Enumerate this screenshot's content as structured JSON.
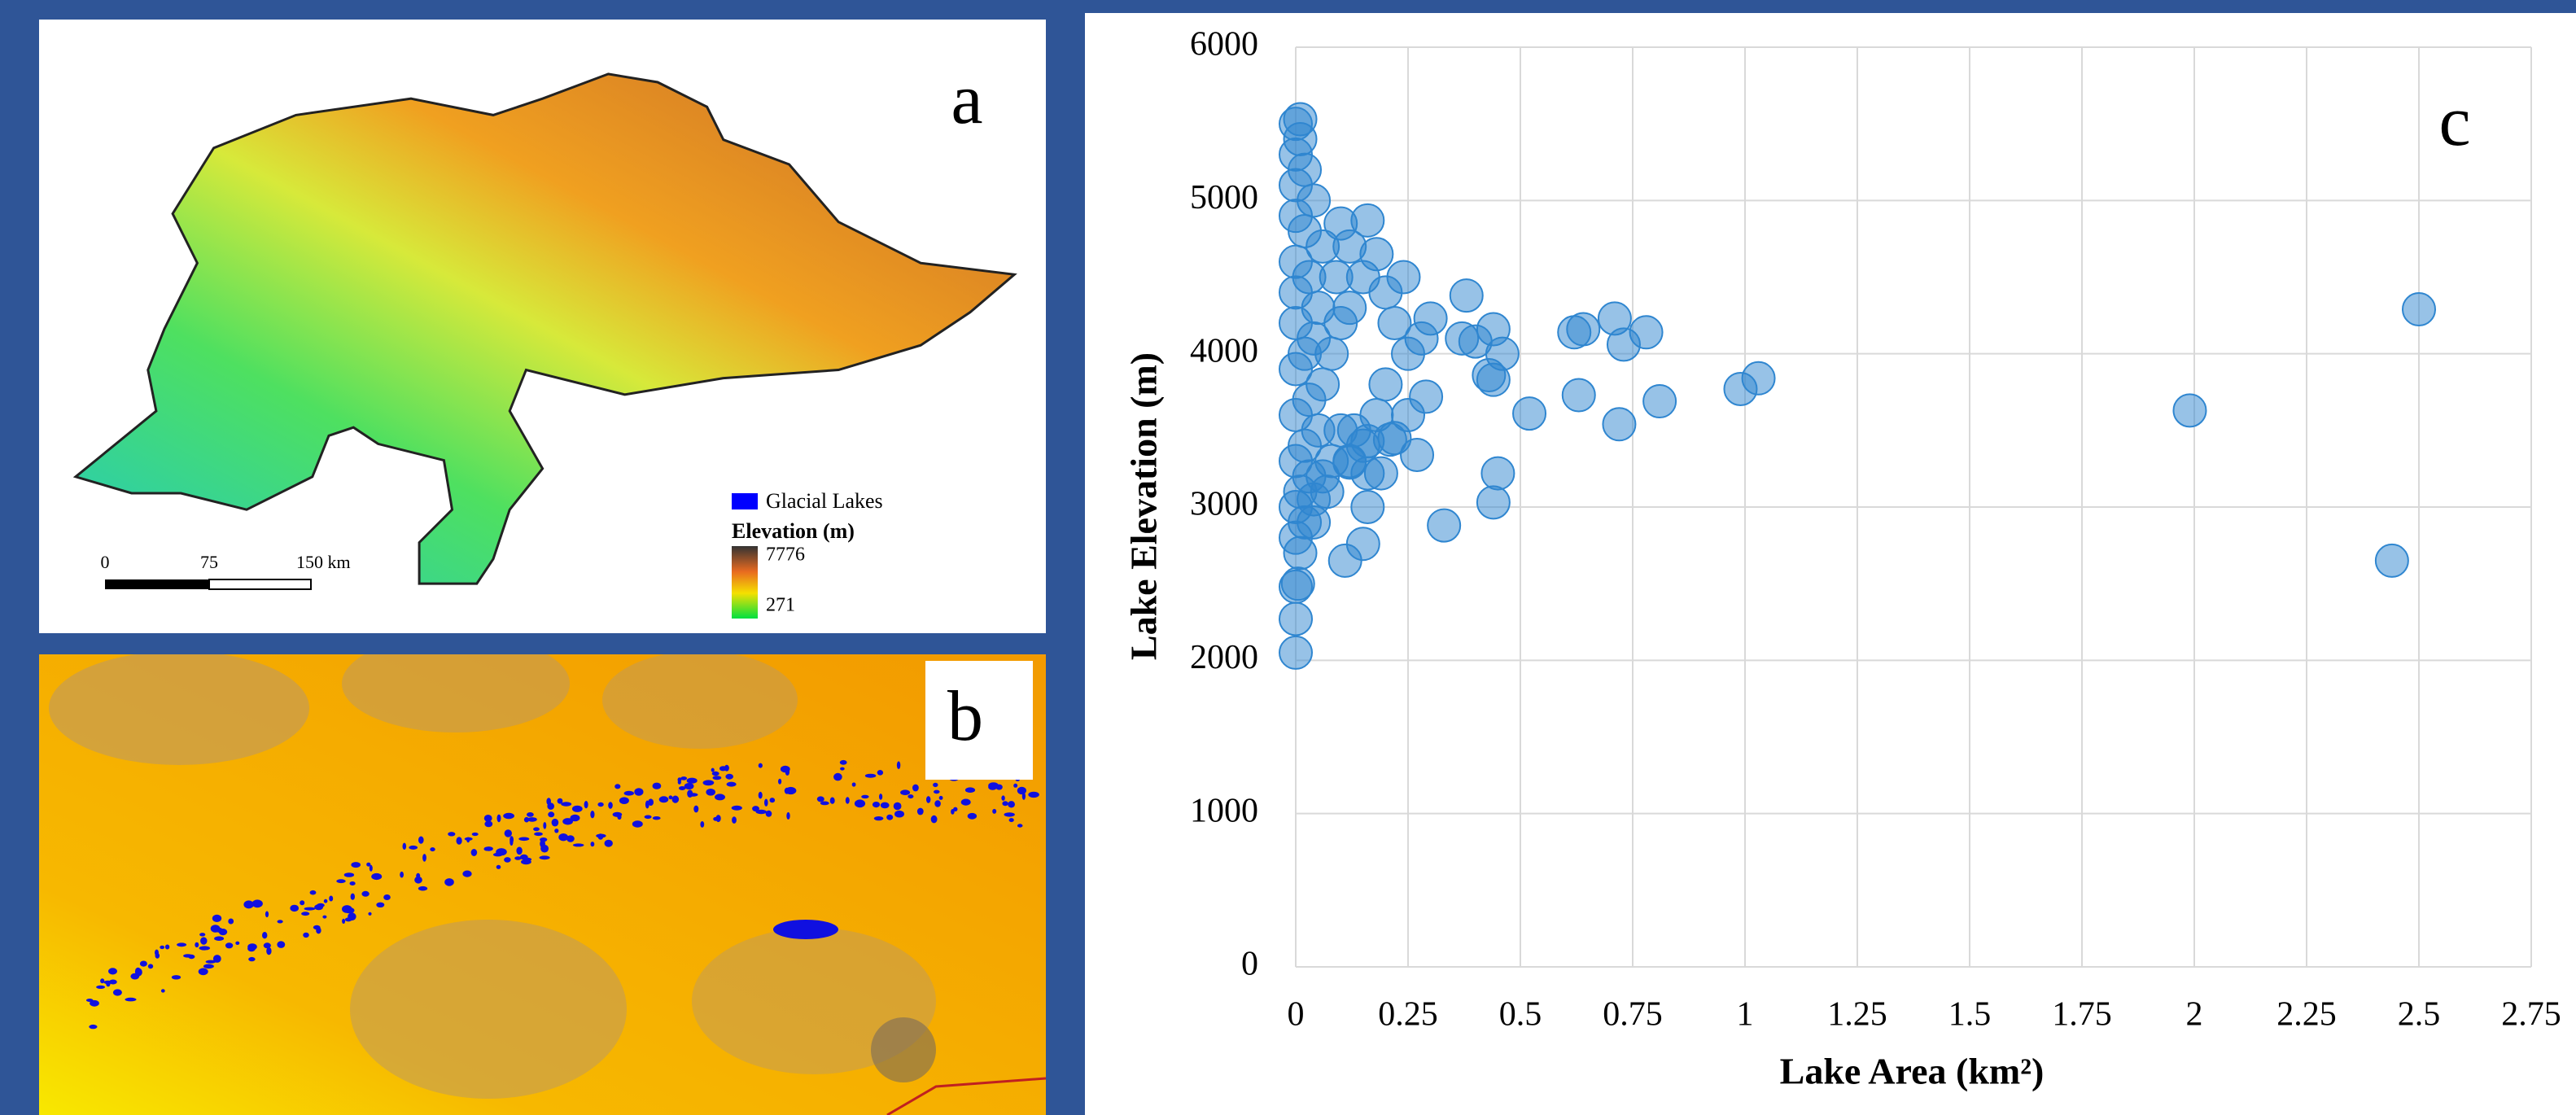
{
  "panels": {
    "a": {
      "label": "a",
      "legend_lakes": "Glacial Lakes",
      "legend_title": "Elevation (m)",
      "legend_max": "7776",
      "legend_min": "271",
      "scale": [
        "0",
        "75",
        "150 km"
      ]
    },
    "b": {
      "label": "b"
    }
  },
  "chart_data": {
    "type": "scatter",
    "annotation": "c",
    "xlabel": "Lake Area (km²)",
    "ylabel": "Lake Elevation (m)",
    "color": "#2f86d0",
    "grid": true,
    "xlim": [
      0,
      2.75
    ],
    "ylim": [
      0,
      6000
    ],
    "xticks": [
      0,
      0.25,
      0.5,
      0.75,
      1,
      1.25,
      1.5,
      1.75,
      2,
      2.25,
      2.5,
      2.75
    ],
    "yticks": [
      0,
      1000,
      2000,
      3000,
      4000,
      5000,
      6000
    ],
    "x": [
      0,
      0,
      0,
      0.005,
      0.01,
      0,
      0.02,
      0.04,
      0,
      0.01,
      0.03,
      0,
      0.02,
      0.05,
      0,
      0.03,
      0.06,
      0,
      0.02,
      0.08,
      0.04,
      0,
      0.1,
      0.05,
      0.12,
      0,
      0.03,
      0.09,
      0.15,
      0,
      0.06,
      0.12,
      0.02,
      0.1,
      0.16,
      0,
      0.04,
      0,
      0.02,
      0,
      0.01,
      0,
      0.01,
      0.18,
      0.2,
      0.22,
      0.24,
      0.25,
      0.28,
      0.2,
      0.18,
      0.22,
      0.25,
      0.15,
      0.12,
      0.1,
      0.08,
      0.07,
      0.04,
      0.06,
      0.3,
      0.38,
      0.37,
      0.4,
      0.44,
      0.46,
      0.43,
      0.44,
      0.29,
      0.27,
      0.21,
      0.16,
      0.13,
      0.19,
      0.16,
      0.12,
      0.16,
      0.15,
      0.11,
      0.33,
      0.44,
      0.45,
      0.52,
      0.62,
      0.64,
      0.71,
      0.73,
      0.78,
      0.63,
      0.72,
      0.81,
      0.99,
      1.03,
      1.99,
      2.5,
      2.44
    ],
    "values": [
      2050,
      2270,
      2480,
      2500,
      2700,
      2800,
      2900,
      2900,
      3000,
      3100,
      3200,
      3300,
      3400,
      3500,
      3600,
      3700,
      3800,
      3900,
      4000,
      4000,
      4100,
      4200,
      4200,
      4300,
      4300,
      4400,
      4500,
      4500,
      4500,
      4600,
      4700,
      4700,
      4800,
      4850,
      4870,
      4900,
      5000,
      5100,
      5200,
      5300,
      5400,
      5500,
      5530,
      4650,
      4400,
      4200,
      4500,
      4000,
      4100,
      3800,
      3600,
      3450,
      3600,
      3400,
      3300,
      3500,
      3300,
      3100,
      3050,
      3200,
      4230,
      4380,
      4100,
      4080,
      4160,
      4000,
      3860,
      3830,
      3720,
      3340,
      3440,
      3430,
      3500,
      3220,
      3220,
      3290,
      3000,
      2760,
      2650,
      2880,
      3030,
      3220,
      3610,
      4140,
      4160,
      4230,
      4060,
      4140,
      3730,
      3540,
      3690,
      3770,
      3840,
      3630,
      4290,
      2650
    ]
  }
}
